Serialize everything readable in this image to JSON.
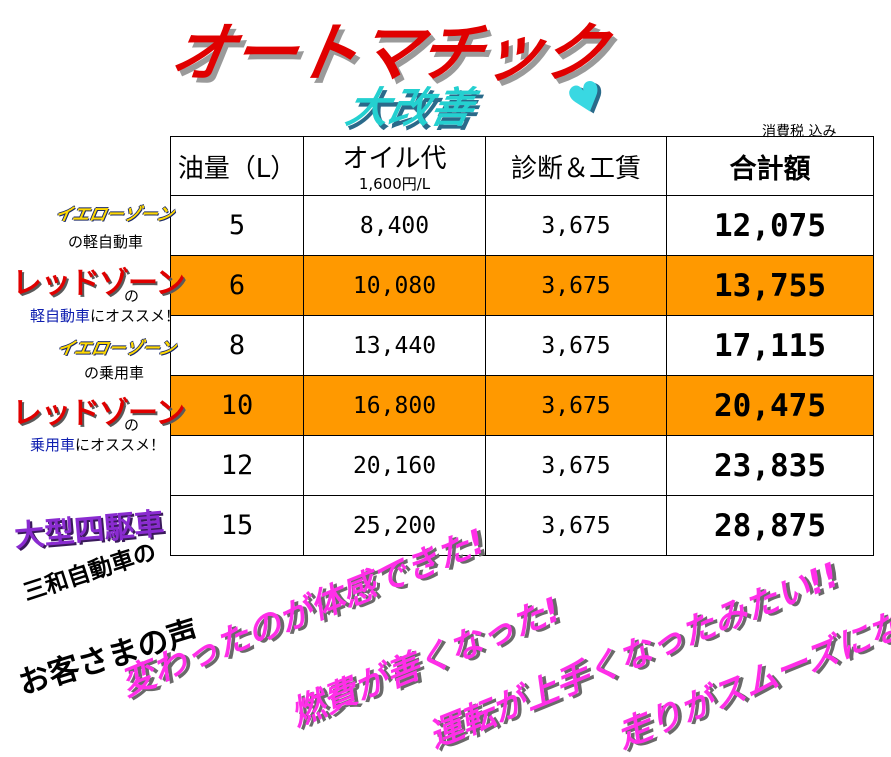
{
  "header": {
    "title": "オートマチック",
    "subtitle": "大改善",
    "heart_icon": "♥",
    "tax_note": "消費税 込み"
  },
  "table": {
    "columns": [
      {
        "label": "油量（L）",
        "sub": ""
      },
      {
        "label": "オイル代",
        "sub": "1,600円/L"
      },
      {
        "label": "診断＆工賃",
        "sub": ""
      },
      {
        "label": "合計額",
        "sub": ""
      }
    ],
    "rows": [
      {
        "liters": "5",
        "oil": "8,400",
        "service": "3,675",
        "total": "12,075"
      },
      {
        "liters": "6",
        "oil": "10,080",
        "service": "3,675",
        "total": "13,755"
      },
      {
        "liters": "8",
        "oil": "13,440",
        "service": "3,675",
        "total": "17,115"
      },
      {
        "liters": "10",
        "oil": "16,800",
        "service": "3,675",
        "total": "20,475"
      },
      {
        "liters": "12",
        "oil": "20,160",
        "service": "3,675",
        "total": "23,835"
      },
      {
        "liters": "15",
        "oil": "25,200",
        "service": "3,675",
        "total": "28,875"
      }
    ],
    "highlight_color": "#ff9900"
  },
  "side_labels": {
    "row1": {
      "zone": "イエローゾーン",
      "line2": "の軽自動車"
    },
    "row2": {
      "zone": "レッドゾーン",
      "no": "の",
      "blue": "軽自動車",
      "rest": "にオススメ！"
    },
    "row3": {
      "zone": "イエローゾーン",
      "line2": "の乗用車"
    },
    "row4": {
      "zone": "レッドゾーン",
      "no": "の",
      "blue": "乗用車",
      "rest": "にオススメ！"
    },
    "big_car": "大型四駆車"
  },
  "voices": {
    "heading_line1": "三和自動車の",
    "heading_line2": "お客さまの声",
    "comments": [
      "変わったのが体感できた!",
      "燃費が善くなった!",
      "運転が上手くなったみたい!!",
      "走りがスムーズになった!"
    ]
  }
}
